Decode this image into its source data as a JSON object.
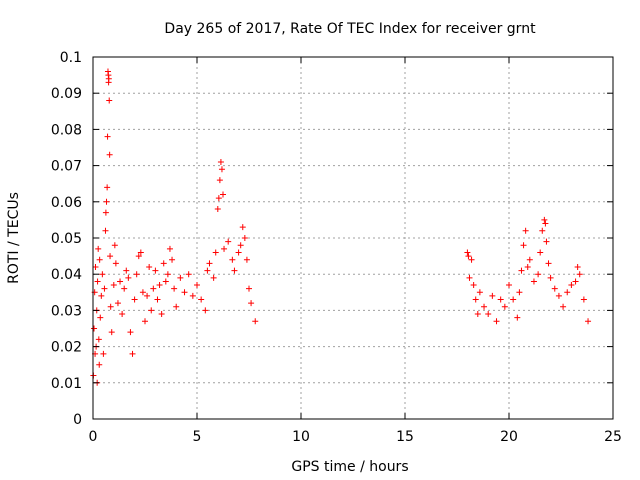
{
  "chart_data": {
    "type": "scatter",
    "title": "Day 265 of 2017, Rate Of TEC Index for receiver grnt",
    "xlabel": "GPS time / hours",
    "ylabel": "ROTI / TECUs",
    "xlim": [
      0,
      25
    ],
    "ylim": [
      0,
      0.1
    ],
    "x_ticks": [
      0,
      5,
      10,
      15,
      20,
      25
    ],
    "x_tick_labels": [
      "0",
      "5",
      "10",
      "15",
      "20",
      "25"
    ],
    "y_ticks": [
      0,
      0.01,
      0.02,
      0.03,
      0.04,
      0.05,
      0.06,
      0.07,
      0.08,
      0.09,
      0.1
    ],
    "y_tick_labels": [
      "0",
      "0.01",
      "0.02",
      "0.03",
      "0.04",
      "0.05",
      "0.06",
      "0.07",
      "0.08",
      "0.09",
      "0.1"
    ],
    "grid": true,
    "marker": "+",
    "color": "#ff0000",
    "series": [
      {
        "values": [
          [
            0.02,
            0.012
          ],
          [
            0.05,
            0.025
          ],
          [
            0.08,
            0.035
          ],
          [
            0.1,
            0.018
          ],
          [
            0.12,
            0.042
          ],
          [
            0.15,
            0.02
          ],
          [
            0.18,
            0.03
          ],
          [
            0.2,
            0.01
          ],
          [
            0.22,
            0.038
          ],
          [
            0.25,
            0.047
          ],
          [
            0.28,
            0.022
          ],
          [
            0.3,
            0.015
          ],
          [
            0.32,
            0.044
          ],
          [
            0.35,
            0.028
          ],
          [
            0.4,
            0.034
          ],
          [
            0.45,
            0.04
          ],
          [
            0.5,
            0.018
          ],
          [
            0.55,
            0.036
          ],
          [
            0.6,
            0.052
          ],
          [
            0.62,
            0.057
          ],
          [
            0.65,
            0.06
          ],
          [
            0.68,
            0.064
          ],
          [
            0.7,
            0.078
          ],
          [
            0.72,
            0.096
          ],
          [
            0.74,
            0.095
          ],
          [
            0.75,
            0.093
          ],
          [
            0.76,
            0.094
          ],
          [
            0.78,
            0.088
          ],
          [
            0.8,
            0.073
          ],
          [
            0.82,
            0.045
          ],
          [
            0.85,
            0.031
          ],
          [
            0.9,
            0.024
          ],
          [
            1.0,
            0.037
          ],
          [
            1.05,
            0.048
          ],
          [
            1.1,
            0.043
          ],
          [
            1.2,
            0.032
          ],
          [
            1.3,
            0.038
          ],
          [
            1.4,
            0.029
          ],
          [
            1.5,
            0.036
          ],
          [
            1.6,
            0.041
          ],
          [
            1.7,
            0.039
          ],
          [
            1.8,
            0.024
          ],
          [
            1.9,
            0.018
          ],
          [
            2.0,
            0.033
          ],
          [
            2.1,
            0.04
          ],
          [
            2.2,
            0.045
          ],
          [
            2.3,
            0.046
          ],
          [
            2.4,
            0.035
          ],
          [
            2.5,
            0.027
          ],
          [
            2.6,
            0.034
          ],
          [
            2.7,
            0.042
          ],
          [
            2.8,
            0.03
          ],
          [
            2.9,
            0.036
          ],
          [
            3.0,
            0.041
          ],
          [
            3.1,
            0.033
          ],
          [
            3.2,
            0.037
          ],
          [
            3.3,
            0.029
          ],
          [
            3.4,
            0.043
          ],
          [
            3.5,
            0.038
          ],
          [
            3.6,
            0.04
          ],
          [
            3.7,
            0.047
          ],
          [
            3.8,
            0.044
          ],
          [
            3.9,
            0.036
          ],
          [
            4.0,
            0.031
          ],
          [
            4.2,
            0.039
          ],
          [
            4.4,
            0.035
          ],
          [
            4.6,
            0.04
          ],
          [
            4.8,
            0.034
          ],
          [
            5.0,
            0.037
          ],
          [
            5.2,
            0.033
          ],
          [
            5.4,
            0.03
          ],
          [
            5.5,
            0.041
          ],
          [
            5.6,
            0.043
          ],
          [
            5.8,
            0.039
          ],
          [
            5.9,
            0.046
          ],
          [
            6.0,
            0.058
          ],
          [
            6.05,
            0.061
          ],
          [
            6.1,
            0.066
          ],
          [
            6.15,
            0.071
          ],
          [
            6.2,
            0.069
          ],
          [
            6.25,
            0.062
          ],
          [
            6.3,
            0.047
          ],
          [
            6.5,
            0.049
          ],
          [
            6.7,
            0.044
          ],
          [
            6.8,
            0.041
          ],
          [
            7.0,
            0.046
          ],
          [
            7.1,
            0.048
          ],
          [
            7.2,
            0.053
          ],
          [
            7.3,
            0.05
          ],
          [
            7.4,
            0.044
          ],
          [
            7.5,
            0.036
          ],
          [
            7.6,
            0.032
          ],
          [
            7.8,
            0.027
          ],
          [
            18.0,
            0.046
          ],
          [
            18.05,
            0.045
          ],
          [
            18.1,
            0.039
          ],
          [
            18.2,
            0.044
          ],
          [
            18.3,
            0.037
          ],
          [
            18.4,
            0.033
          ],
          [
            18.5,
            0.029
          ],
          [
            18.6,
            0.035
          ],
          [
            18.8,
            0.031
          ],
          [
            19.0,
            0.029
          ],
          [
            19.2,
            0.034
          ],
          [
            19.4,
            0.027
          ],
          [
            19.6,
            0.033
          ],
          [
            19.8,
            0.031
          ],
          [
            20.0,
            0.037
          ],
          [
            20.2,
            0.033
          ],
          [
            20.4,
            0.028
          ],
          [
            20.5,
            0.035
          ],
          [
            20.6,
            0.041
          ],
          [
            20.7,
            0.048
          ],
          [
            20.8,
            0.052
          ],
          [
            20.9,
            0.042
          ],
          [
            21.0,
            0.044
          ],
          [
            21.2,
            0.038
          ],
          [
            21.4,
            0.04
          ],
          [
            21.5,
            0.046
          ],
          [
            21.6,
            0.052
          ],
          [
            21.7,
            0.055
          ],
          [
            21.75,
            0.054
          ],
          [
            21.8,
            0.049
          ],
          [
            21.9,
            0.043
          ],
          [
            22.0,
            0.039
          ],
          [
            22.2,
            0.036
          ],
          [
            22.4,
            0.034
          ],
          [
            22.6,
            0.031
          ],
          [
            22.8,
            0.035
          ],
          [
            23.0,
            0.037
          ],
          [
            23.2,
            0.038
          ],
          [
            23.3,
            0.042
          ],
          [
            23.4,
            0.04
          ],
          [
            23.6,
            0.033
          ],
          [
            23.8,
            0.027
          ]
        ]
      }
    ]
  }
}
